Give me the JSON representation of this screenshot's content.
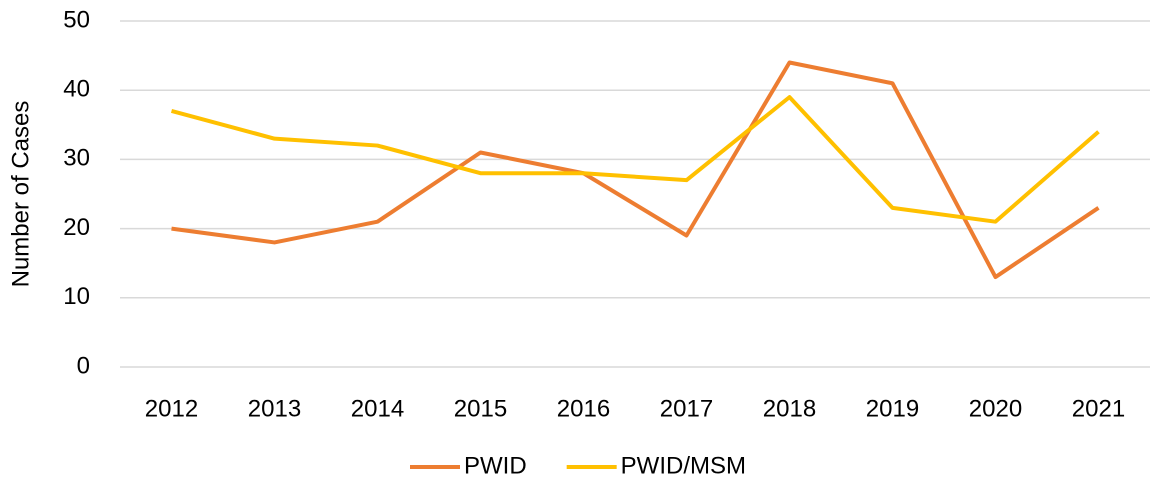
{
  "chart_data": {
    "type": "line",
    "y_label": "Number of Cases",
    "categories": [
      "2012",
      "2013",
      "2014",
      "2015",
      "2016",
      "2017",
      "2018",
      "2019",
      "2020",
      "2021"
    ],
    "series": [
      {
        "name": "PWID",
        "color": "#ed7d31",
        "values": [
          20,
          18,
          21,
          31,
          28,
          19,
          44,
          41,
          13,
          23
        ]
      },
      {
        "name": "PWID/MSM",
        "color": "#ffc000",
        "values": [
          37,
          33,
          32,
          28,
          28,
          27,
          39,
          23,
          21,
          34
        ]
      }
    ],
    "ylim": [
      0,
      50
    ],
    "yticks": [
      0,
      10,
      20,
      30,
      40,
      50
    ],
    "grid": true,
    "legend": "bottom"
  }
}
